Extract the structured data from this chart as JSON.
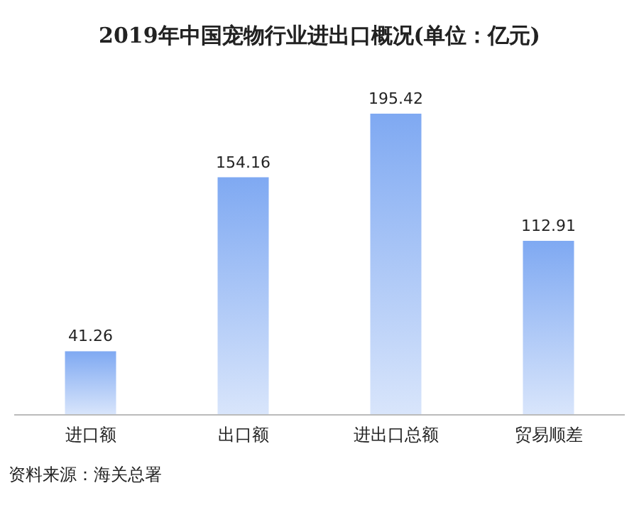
{
  "chart_data": {
    "type": "bar",
    "title": "2019年中国宠物行业进出口概况(单位：亿元)",
    "categories": [
      "进口额",
      "出口额",
      "进出口总额",
      "贸易顺差"
    ],
    "values": [
      41.26,
      154.16,
      195.42,
      112.91
    ],
    "color": "#7fa9f2",
    "data_labels": true,
    "annotations": [
      "资料来源：海关总署"
    ]
  }
}
